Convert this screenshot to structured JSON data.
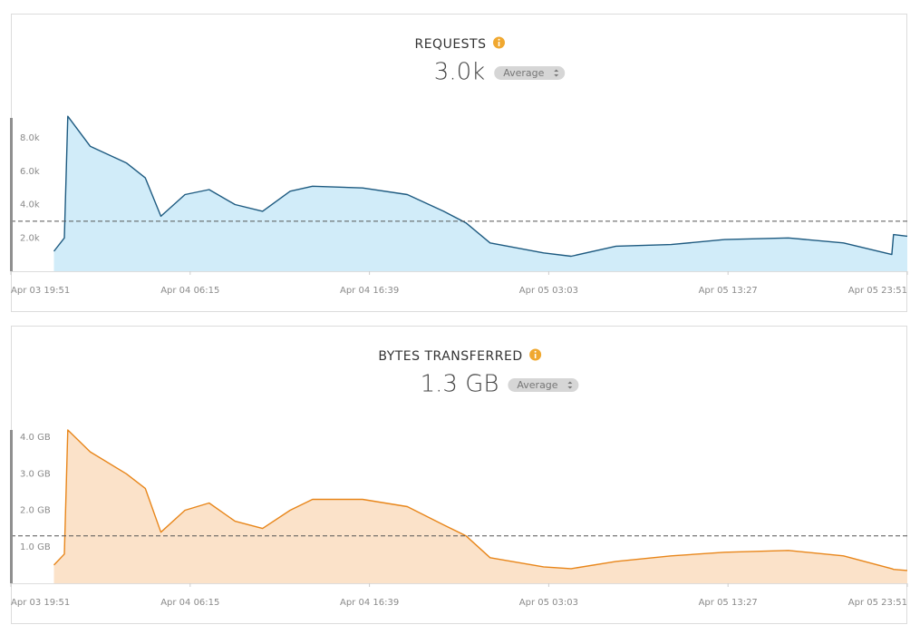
{
  "chart_data": [
    {
      "type": "area",
      "title": "REQUESTS",
      "summary": {
        "value": 3000,
        "label": "3.0k"
      },
      "aggregate": "Average",
      "color": "#1d5a80",
      "fill_color": "#d1ecf9",
      "x": [
        "Apr 03 22:21",
        "Apr 03 22:57",
        "Apr 03 23:09",
        "Apr 04 00:27",
        "Apr 04 02:33",
        "Apr 04 03:39",
        "Apr 04 04:33",
        "Apr 04 05:57",
        "Apr 04 07:21",
        "Apr 04 08:51",
        "Apr 04 10:27",
        "Apr 04 12:03",
        "Apr 04 13:21",
        "Apr 04 16:15",
        "Apr 04 18:51",
        "Apr 04 20:57",
        "Apr 04 22:15",
        "Apr 04 23:39",
        "Apr 05 02:45",
        "Apr 05 04:21",
        "Apr 05 06:57",
        "Apr 05 10:09",
        "Apr 05 13:15",
        "Apr 05 16:57",
        "Apr 05 20:09",
        "Apr 05 22:57",
        "Apr 05 23:03",
        "Apr 05 23:51"
      ],
      "values": [
        1200,
        2000,
        9300,
        7500,
        6500,
        5600,
        3300,
        4600,
        4900,
        4000,
        3600,
        4800,
        5100,
        5000,
        4600,
        3600,
        2900,
        1700,
        1100,
        900,
        1500,
        1600,
        1900,
        2000,
        1700,
        1000,
        2200,
        2100
      ],
      "xlim": [
        "Apr 03 19:51",
        "Apr 05 23:51"
      ],
      "xticks": [
        "Apr 03 19:51",
        "Apr 04 06:15",
        "Apr 04 16:39",
        "Apr 05 03:03",
        "Apr 05 13:27",
        "Apr 05 23:51"
      ],
      "ylim": [
        0,
        9200
      ],
      "yticks": [
        {
          "value": 2000,
          "label": "2.0k"
        },
        {
          "value": 4000,
          "label": "4.0k"
        },
        {
          "value": 6000,
          "label": "6.0k"
        },
        {
          "value": 8000,
          "label": "8.0k"
        }
      ]
    },
    {
      "type": "area",
      "title": "BYTES TRANSFERRED",
      "summary": {
        "value": 1.3,
        "label": "1.3 GB"
      },
      "aggregate": "Average",
      "color": "#e8861a",
      "fill_color": "#fbe2c9",
      "x": [
        "Apr 03 22:21",
        "Apr 03 22:57",
        "Apr 03 23:09",
        "Apr 04 00:27",
        "Apr 04 02:33",
        "Apr 04 03:39",
        "Apr 04 04:33",
        "Apr 04 05:57",
        "Apr 04 07:21",
        "Apr 04 08:51",
        "Apr 04 10:27",
        "Apr 04 12:03",
        "Apr 04 13:21",
        "Apr 04 16:15",
        "Apr 04 18:51",
        "Apr 04 20:57",
        "Apr 04 22:15",
        "Apr 04 23:39",
        "Apr 05 02:45",
        "Apr 05 04:21",
        "Apr 05 06:57",
        "Apr 05 10:09",
        "Apr 05 13:15",
        "Apr 05 16:57",
        "Apr 05 20:09",
        "Apr 05 22:57",
        "Apr 05 23:03",
        "Apr 05 23:51"
      ],
      "values": [
        0.5,
        0.8,
        4.2,
        3.6,
        3.0,
        2.6,
        1.4,
        2.0,
        2.2,
        1.7,
        1.5,
        2.0,
        2.3,
        2.3,
        2.1,
        1.6,
        1.3,
        0.7,
        0.45,
        0.4,
        0.6,
        0.75,
        0.85,
        0.9,
        0.75,
        0.4,
        0.38,
        0.35
      ],
      "xlim": [
        "Apr 03 19:51",
        "Apr 05 23:51"
      ],
      "xticks": [
        "Apr 03 19:51",
        "Apr 04 06:15",
        "Apr 04 16:39",
        "Apr 05 03:03",
        "Apr 05 13:27",
        "Apr 05 23:51"
      ],
      "ylim": [
        0,
        4.2
      ],
      "yticks": [
        {
          "value": 1,
          "label": "1.0 GB"
        },
        {
          "value": 2,
          "label": "2.0 GB"
        },
        {
          "value": 3,
          "label": "3.0 GB"
        },
        {
          "value": 4,
          "label": "4.0 GB"
        }
      ]
    }
  ]
}
